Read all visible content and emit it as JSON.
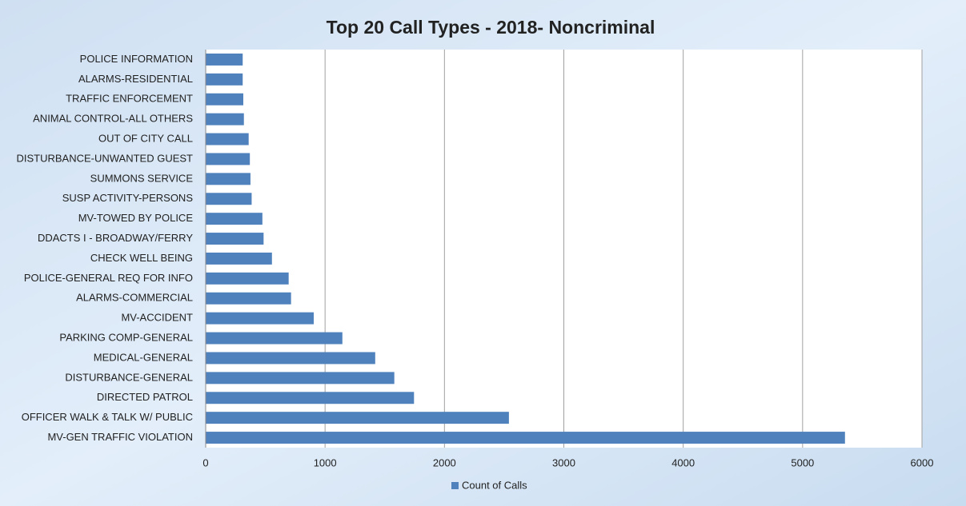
{
  "chart_data": {
    "type": "barh",
    "title": "Top 20 Call Types - 2018- Noncriminal",
    "categories": [
      "POLICE INFORMATION",
      "ALARMS-RESIDENTIAL",
      "TRAFFIC ENFORCEMENT",
      "ANIMAL CONTROL-ALL OTHERS",
      "OUT OF CITY CALL",
      "DISTURBANCE-UNWANTED GUEST",
      "SUMMONS SERVICE",
      "SUSP ACTIVITY-PERSONS",
      "MV-TOWED BY POLICE",
      "DDACTS I - BROADWAY/FERRY",
      "CHECK WELL BEING",
      "POLICE-GENERAL REQ FOR INFO",
      "ALARMS-COMMERCIAL",
      "MV-ACCIDENT",
      "PARKING COMP-GENERAL",
      "MEDICAL-GENERAL",
      "DISTURBANCE-GENERAL",
      "DIRECTED PATROL",
      "OFFICER WALK & TALK W/ PUBLIC",
      "MV-GEN TRAFFIC VIOLATION"
    ],
    "series": [
      {
        "name": "Count of Calls",
        "color": "#4f81bd",
        "values": [
          310,
          310,
          315,
          320,
          360,
          370,
          375,
          385,
          475,
          485,
          555,
          695,
          715,
          905,
          1145,
          1420,
          1580,
          1745,
          2540,
          5355
        ]
      }
    ],
    "xlim": [
      0,
      6000
    ],
    "xticks": [
      0,
      1000,
      2000,
      3000,
      4000,
      5000,
      6000
    ],
    "grid": true,
    "legend": "bottom"
  }
}
